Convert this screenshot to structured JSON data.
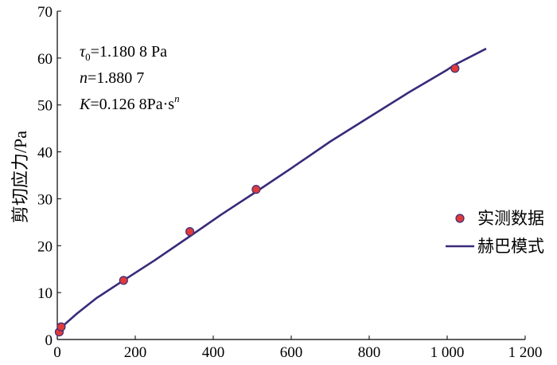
{
  "chart_data": {
    "type": "scatter",
    "title": "",
    "xlabel": "",
    "ylabel": "剪切应力/Pa",
    "xlim": [
      0,
      1200
    ],
    "ylim": [
      0,
      70
    ],
    "xticks": [
      0,
      200,
      400,
      600,
      800,
      1000,
      1200
    ],
    "xtick_labels": [
      "0",
      "200",
      "400",
      "600",
      "800",
      "1 000",
      "1 200"
    ],
    "yticks": [
      0,
      10,
      20,
      30,
      40,
      50,
      60,
      70
    ],
    "ytick_labels": [
      "0",
      "10",
      "20",
      "30",
      "40",
      "50",
      "60",
      "70"
    ],
    "grid": false,
    "legend_position": "right",
    "annotations": [
      {
        "sym": "τ",
        "sub": "0",
        "text": "=1.180 8 Pa"
      },
      {
        "sym": "n",
        "sub": "",
        "text": "=1.880 7"
      },
      {
        "sym": "K",
        "sub": "",
        "text": "=0.126 8Pa·s",
        "sup": "n"
      }
    ],
    "series": [
      {
        "name": "实测数据",
        "kind": "scatter",
        "color": "#e03a3a",
        "edge_color": "#3a2f7a",
        "x": [
          5,
          10,
          170,
          340,
          510,
          1020
        ],
        "y": [
          1.6,
          2.7,
          12.6,
          23.0,
          32.0,
          57.8
        ]
      },
      {
        "name": "赫巴模式",
        "kind": "line",
        "color": "#3a2a7a",
        "x": [
          0,
          5,
          10,
          20,
          50,
          100,
          170,
          250,
          340,
          420,
          510,
          600,
          700,
          800,
          900,
          1000,
          1020,
          1100
        ],
        "y": [
          1.18,
          1.7,
          2.4,
          3.3,
          5.5,
          8.8,
          12.6,
          16.9,
          22.0,
          26.6,
          31.5,
          36.5,
          42.2,
          47.4,
          52.6,
          57.5,
          58.6,
          62.0
        ]
      }
    ]
  }
}
